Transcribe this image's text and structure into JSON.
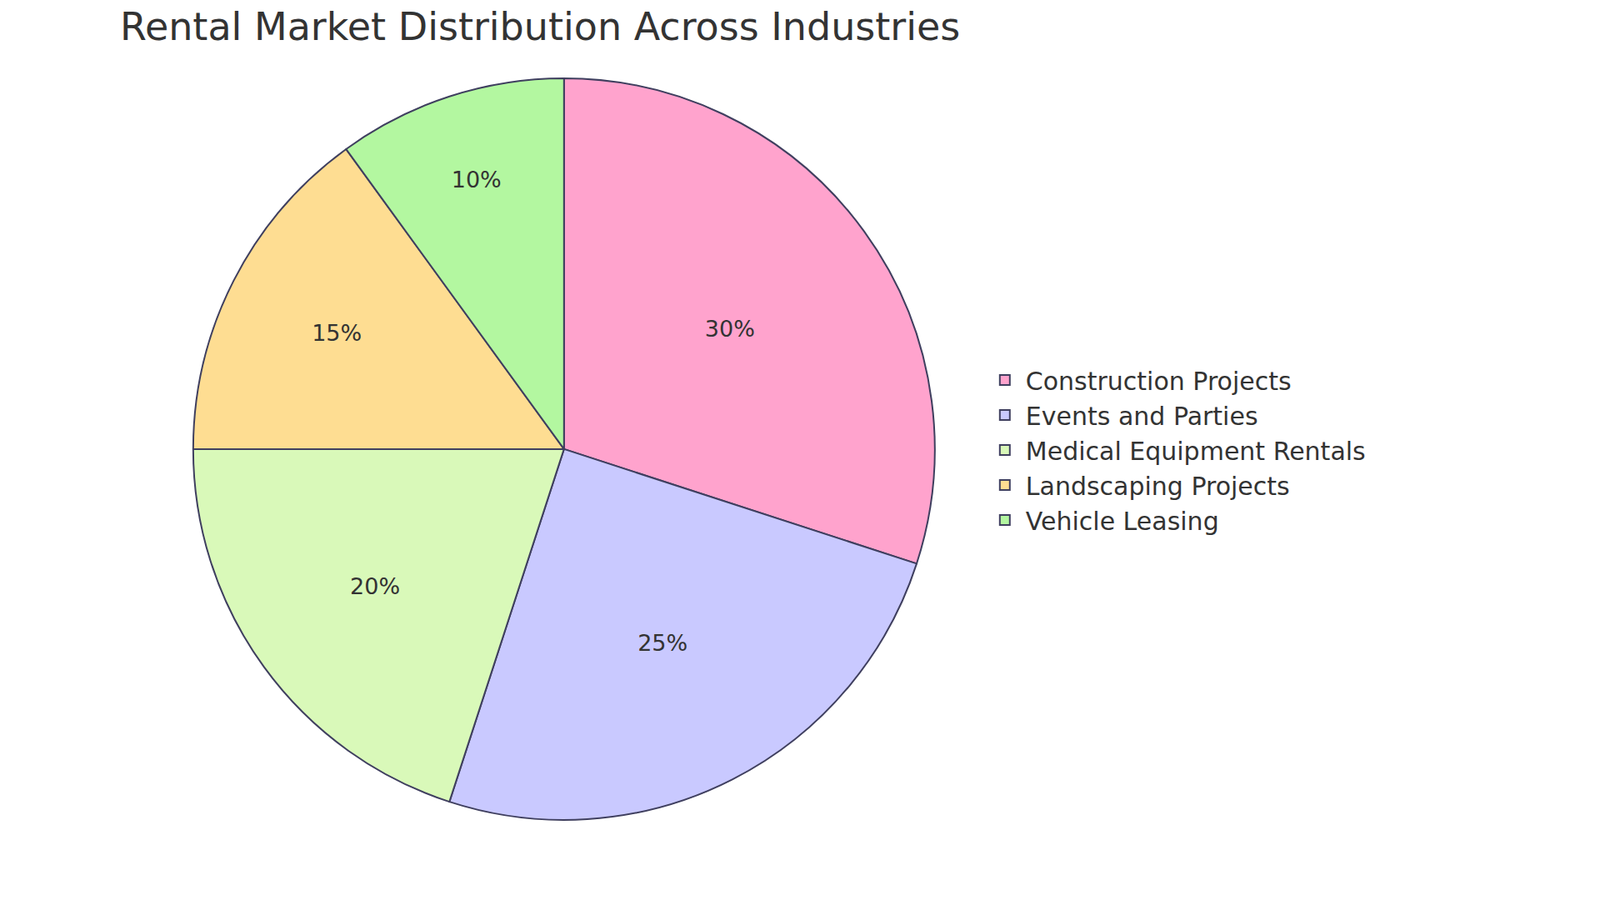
{
  "chart_data": {
    "type": "pie",
    "title": "Rental Market Distribution Across Industries",
    "categories": [
      "Construction Projects",
      "Events and Parties",
      "Medical Equipment Rentals",
      "Landscaping Projects",
      "Vehicle Leasing"
    ],
    "values": [
      30,
      25,
      20,
      15,
      10
    ],
    "value_labels": [
      "30%",
      "25%",
      "20%",
      "15%",
      "10%"
    ],
    "colors": [
      "#ffa3cd",
      "#c9c9ff",
      "#d9f9b9",
      "#fedd92",
      "#b3f7a0"
    ],
    "data_labels": true,
    "legend": "right"
  }
}
